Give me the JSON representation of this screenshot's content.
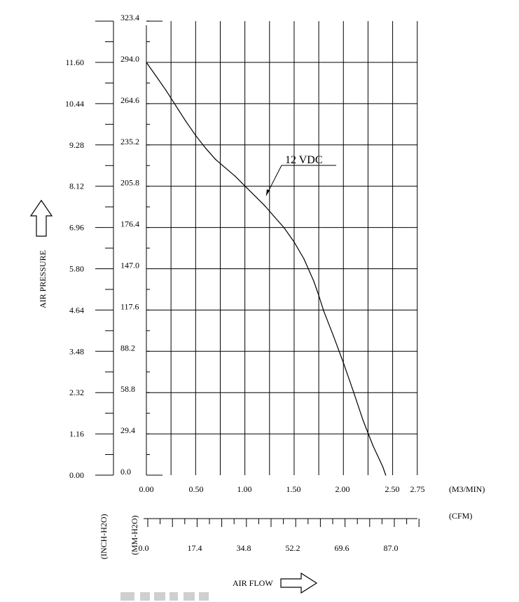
{
  "chart_data": {
    "type": "line",
    "x_unit_primary": "(M3/MIN)",
    "x_unit_secondary": "(CFM)",
    "y_unit_inch": "(INCH-H2O)",
    "y_unit_mm": "(MM-H2O)",
    "x_axis_title": "AIR FLOW",
    "y_axis_title": "AIR PRESSURE",
    "x_ticks_m3min": [
      "0.00",
      "0.50",
      "1.00",
      "1.50",
      "2.00",
      "2.50",
      "2.75"
    ],
    "x_ticks_cfm": [
      "0.0",
      "17.4",
      "34.8",
      "52.2",
      "69.6",
      "87.0"
    ],
    "y_ticks_mm": [
      "0.0",
      "29.4",
      "58.8",
      "88.2",
      "117.6",
      "147.0",
      "176.4",
      "205.8",
      "235.2",
      "264.6",
      "294.0",
      "323.4"
    ],
    "y_ticks_inch": [
      "0.00",
      "1.16",
      "2.32",
      "3.48",
      "4.64",
      "5.80",
      "6.96",
      "8.12",
      "9.28",
      "10.44",
      "11.60"
    ],
    "xlim": [
      0,
      2.75
    ],
    "ylim": [
      0,
      323.4
    ],
    "grid": true,
    "series": [
      {
        "name": "12 VDC",
        "x_unit": "m3/min",
        "y_unit": "mm-H2O",
        "x": [
          0.0,
          0.1,
          0.2,
          0.3,
          0.4,
          0.5,
          0.6,
          0.7,
          0.8,
          0.9,
          1.0,
          1.1,
          1.2,
          1.3,
          1.4,
          1.5,
          1.6,
          1.7,
          1.75,
          1.8,
          1.9,
          2.0,
          2.1,
          2.2,
          2.3,
          2.4,
          2.43
        ],
        "y": [
          294.0,
          284.0,
          274.0,
          263.0,
          252.0,
          242.0,
          233.0,
          225.0,
          219.0,
          213.0,
          206.0,
          199.0,
          192.0,
          184.0,
          176.0,
          166.0,
          154.0,
          138.0,
          128.0,
          117.0,
          99.0,
          80.0,
          60.0,
          39.0,
          21.0,
          6.0,
          0.0
        ]
      }
    ]
  }
}
